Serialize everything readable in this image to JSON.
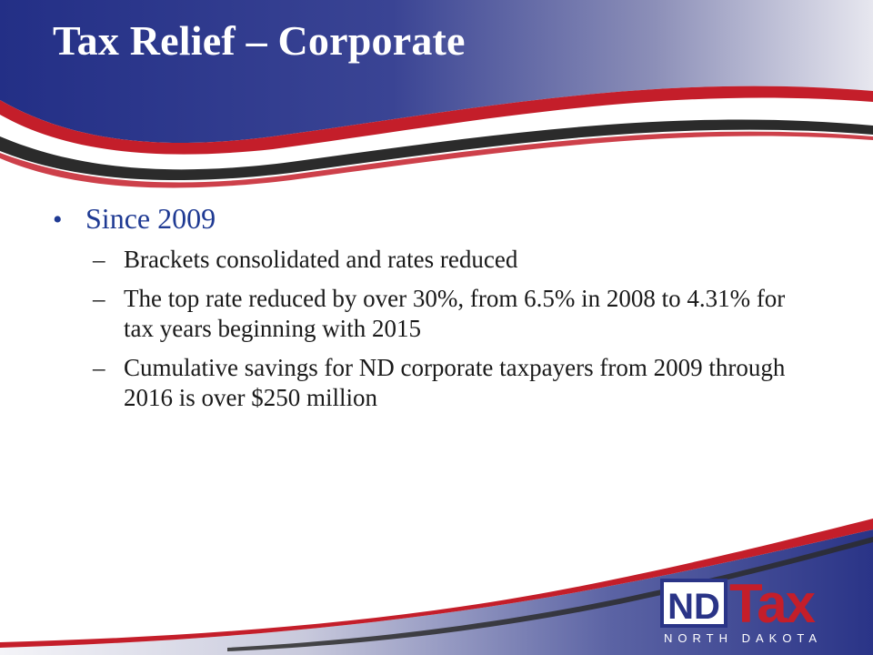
{
  "slide": {
    "title": "Tax Relief – Corporate",
    "bullet": {
      "marker": "•",
      "text": "Since 2009",
      "sub_marker": "–",
      "subitems": [
        "Brackets consolidated and rates reduced",
        "The top rate reduced by over 30%, from 6.5% in 2008 to 4.31% for tax years beginning with 2015",
        "Cumulative savings for ND corporate taxpayers from 2009 through 2016 is over $250 million"
      ]
    }
  },
  "logo": {
    "nd": "ND",
    "tax": "Tax",
    "state": "NORTH DAKOTA"
  },
  "colors": {
    "header_blue": "#2a3a8c",
    "accent_red": "#c41e2a",
    "dark_stripe": "#2b2b2b",
    "bullet_blue": "#1f3a93"
  }
}
